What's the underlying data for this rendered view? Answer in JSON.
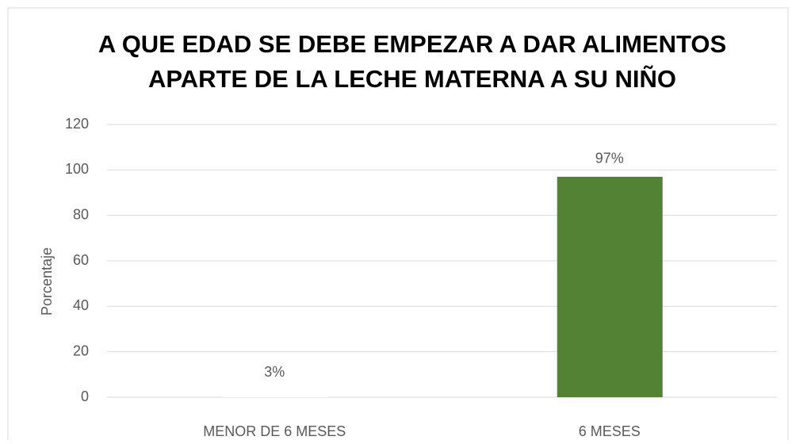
{
  "chart_data": {
    "type": "bar",
    "title": "A QUE EDAD SE DEBE EMPEZAR A DAR ALIMENTOS APARTE DE LA LECHE MATERNA A SU NIÑO",
    "y_label": "Porcentaje",
    "categories": [
      "MENOR DE 6 MESES",
      "6 MESES"
    ],
    "values": [
      3,
      97
    ],
    "value_labels": [
      "3%",
      "97%"
    ],
    "colors": [
      "#ffffff",
      "#548235"
    ],
    "ylim": [
      0,
      120
    ],
    "yticks": [
      0,
      20,
      40,
      60,
      80,
      100,
      120
    ],
    "grid": true
  }
}
